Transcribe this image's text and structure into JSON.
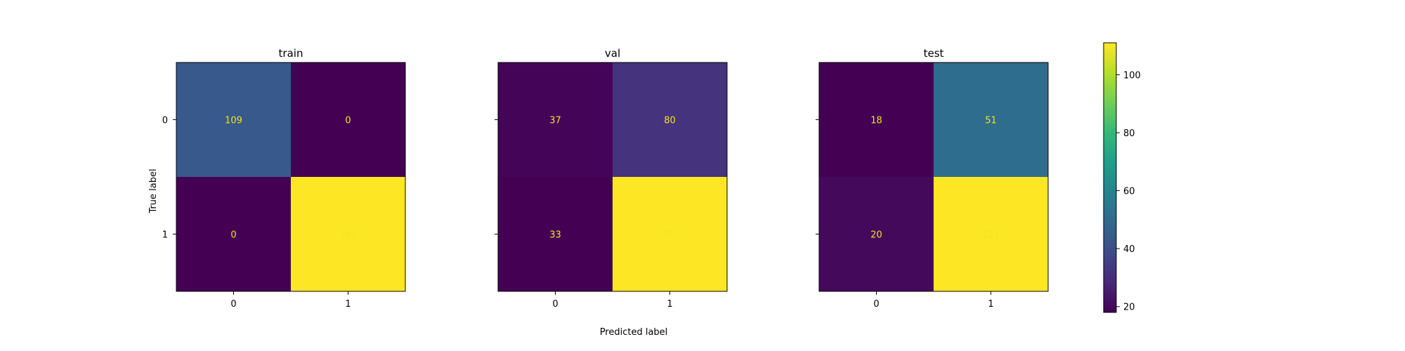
{
  "chart_data": {
    "type": "heatmap",
    "xlabel": "Predicted label",
    "ylabel": "True label",
    "text_color": "#f1e51d",
    "colorscale": [
      "#440154",
      "#482878",
      "#3e4a89",
      "#31688e",
      "#26828e",
      "#1f9e89",
      "#35b779",
      "#6ece58",
      "#b5de2b",
      "#fde725"
    ],
    "colorbar": {
      "min": 18,
      "max": 111,
      "ticks": [
        20,
        40,
        60,
        80,
        100
      ]
    },
    "panels": [
      {
        "title": "train",
        "x_categories": [
          "0",
          "1"
        ],
        "y_categories": [
          "0",
          "1"
        ],
        "matrix": [
          [
            109,
            0
          ],
          [
            0,
            391
          ]
        ],
        "color_range": [
          0,
          391
        ]
      },
      {
        "title": "val",
        "x_categories": [
          "0",
          "1"
        ],
        "y_categories": [
          "0",
          "1"
        ],
        "matrix": [
          [
            37,
            80
          ],
          [
            33,
            350
          ]
        ],
        "color_range": [
          33,
          350
        ]
      },
      {
        "title": "test",
        "x_categories": [
          "0",
          "1"
        ],
        "y_categories": [
          "0",
          "1"
        ],
        "matrix": [
          [
            18,
            51
          ],
          [
            20,
            111
          ]
        ],
        "color_range": [
          18,
          111
        ]
      }
    ]
  }
}
